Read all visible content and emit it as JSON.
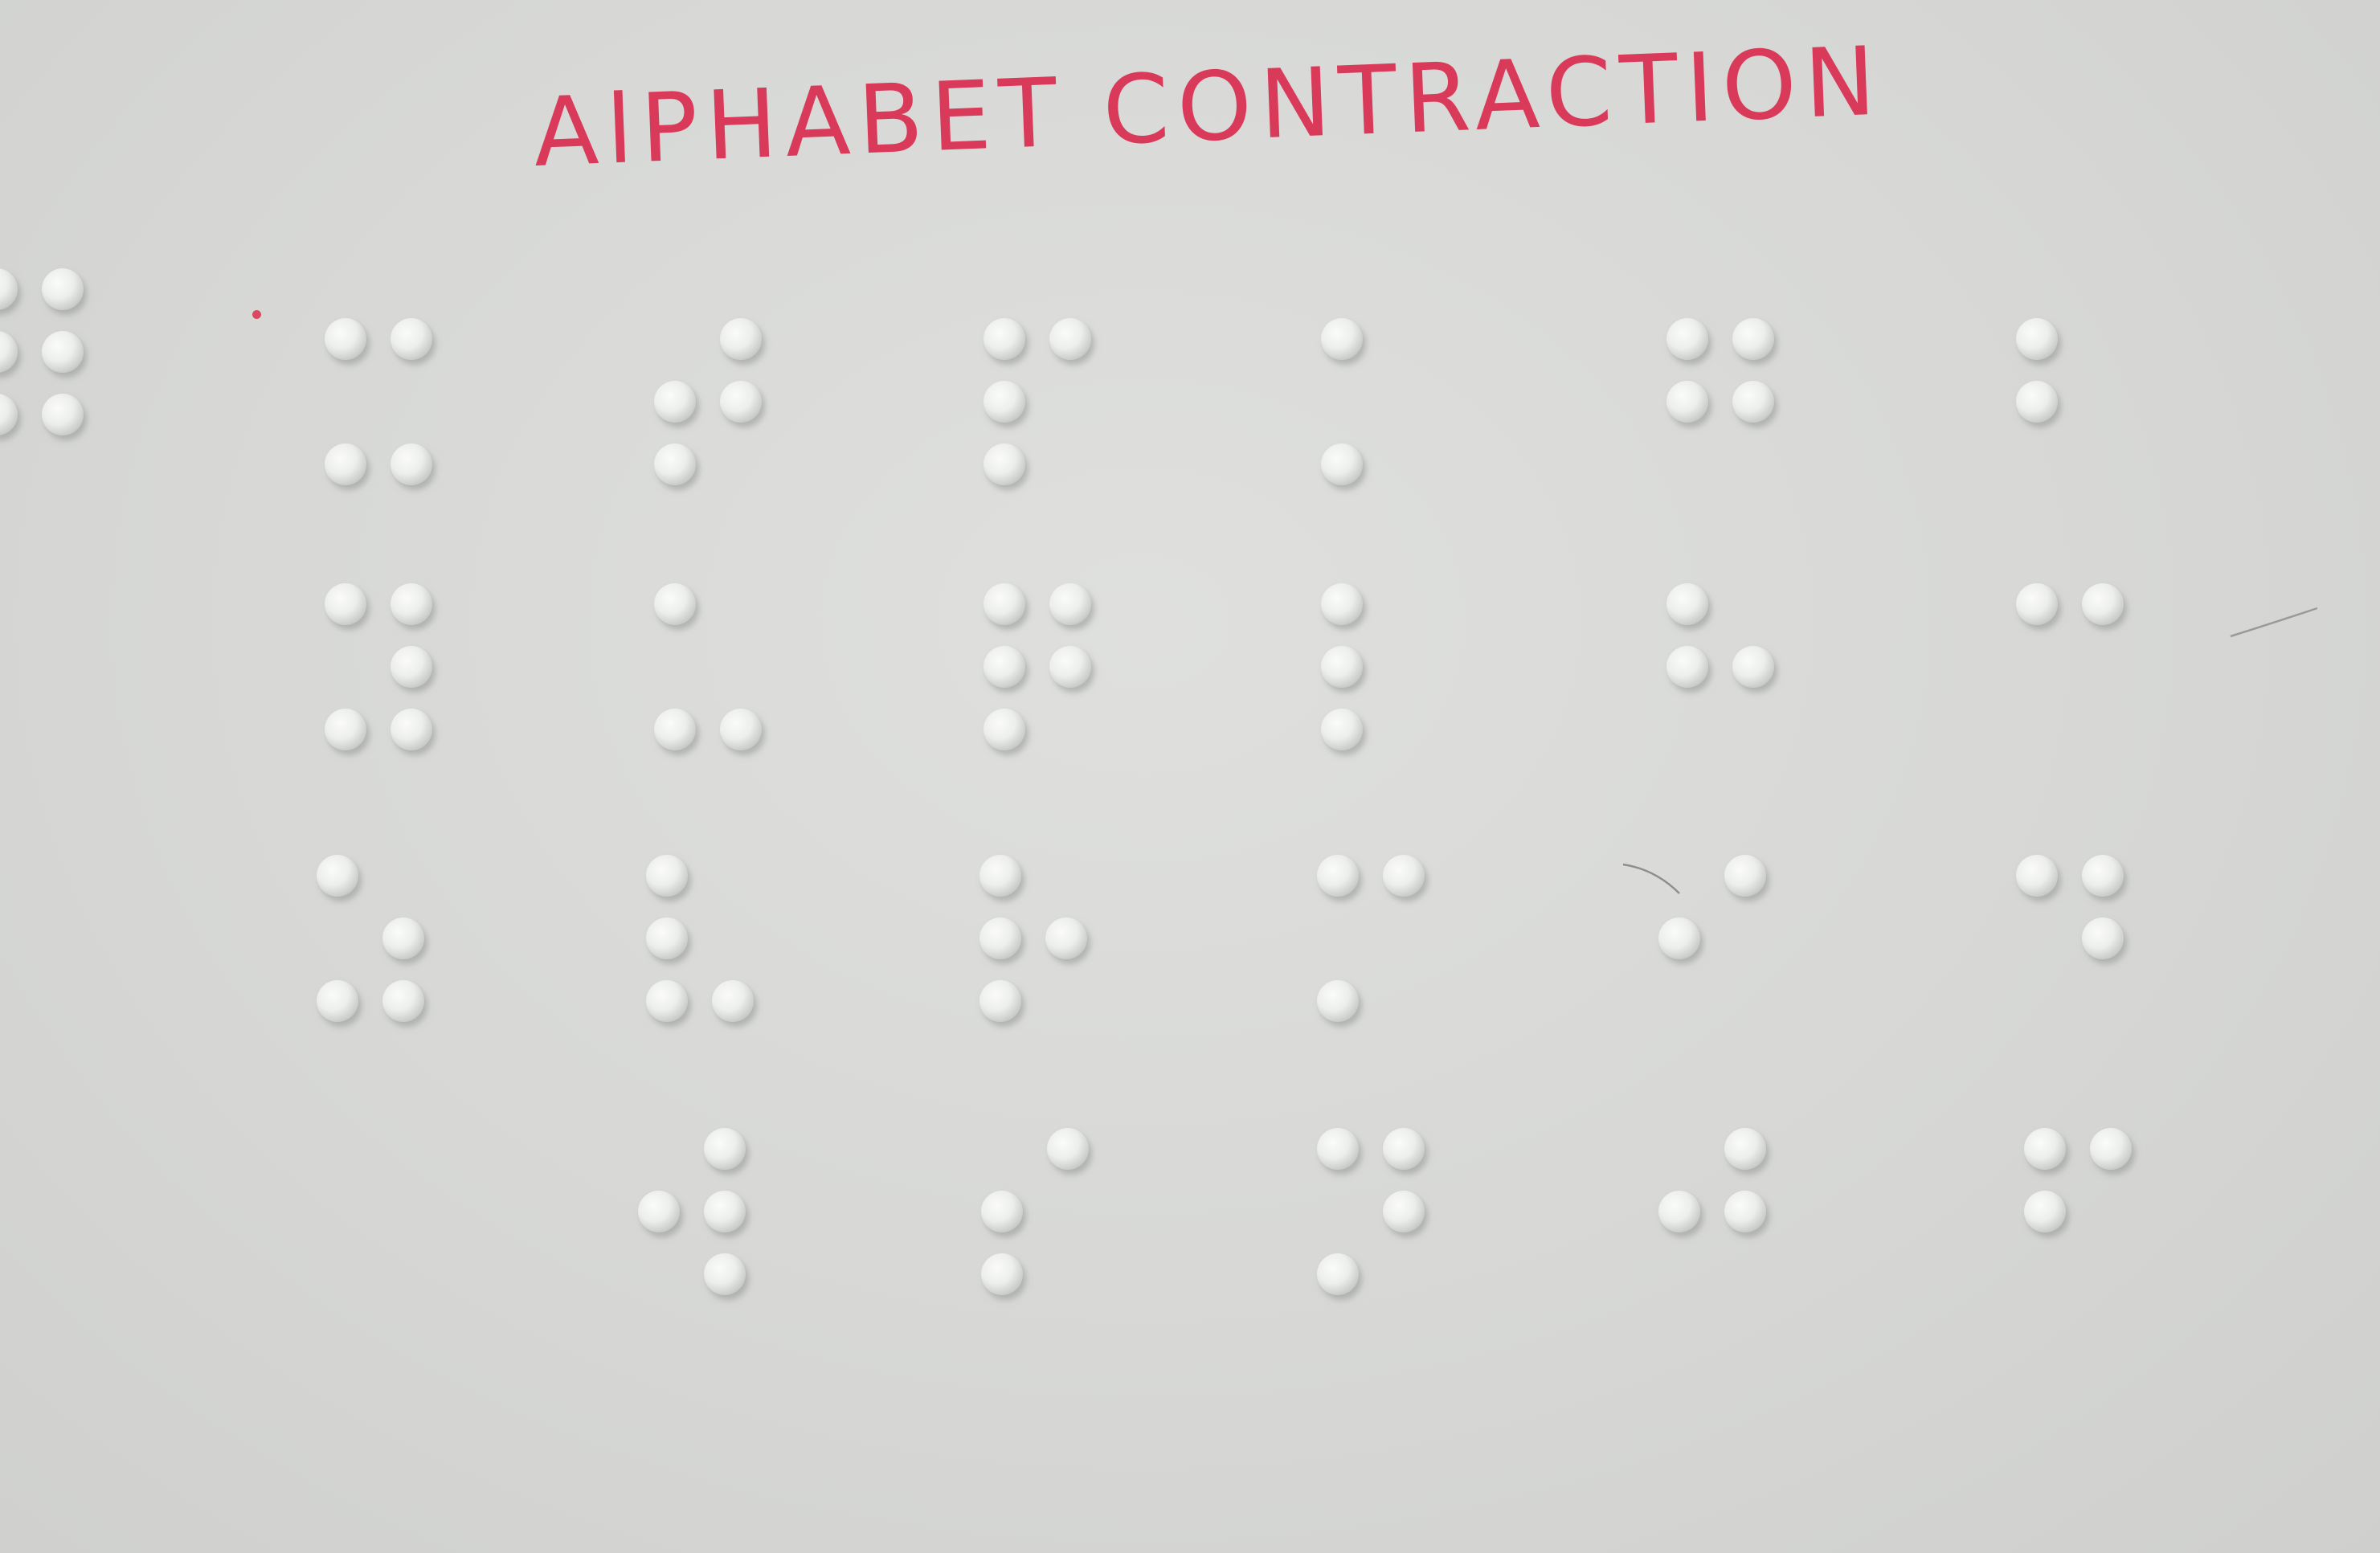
{
  "heading": {
    "text": "AlPHABET CONTRACTION",
    "ink_color": "#d93a5a"
  },
  "paper_color": "#d9dad8",
  "dot_color": "#f1f2f0",
  "braille_cells": [
    {
      "id": "edge-partial",
      "dots": [
        1,
        2,
        3,
        4,
        5,
        6
      ]
    },
    {
      "id": "r1c1",
      "dots": [
        1,
        4,
        3,
        6
      ]
    },
    {
      "id": "r1c2",
      "dots": [
        4,
        2,
        5,
        3
      ]
    },
    {
      "id": "r1c3",
      "dots": [
        1,
        4,
        2,
        3
      ]
    },
    {
      "id": "r1c4",
      "dots": [
        1,
        3
      ]
    },
    {
      "id": "r1c5",
      "dots": [
        1,
        4,
        2,
        5
      ]
    },
    {
      "id": "r1c6",
      "dots": [
        1,
        2
      ]
    },
    {
      "id": "r2c1",
      "dots": [
        1,
        4,
        5,
        3,
        6
      ]
    },
    {
      "id": "r2c2",
      "dots": [
        1,
        3,
        6
      ]
    },
    {
      "id": "r2c3",
      "dots": [
        1,
        4,
        2,
        5,
        3
      ]
    },
    {
      "id": "r2c4",
      "dots": [
        1,
        2,
        3
      ]
    },
    {
      "id": "r2c5",
      "dots": [
        1,
        2,
        5
      ]
    },
    {
      "id": "r2c6",
      "dots": [
        1,
        4
      ]
    },
    {
      "id": "r3c1",
      "dots": [
        1,
        5,
        3,
        6
      ]
    },
    {
      "id": "r3c2",
      "dots": [
        1,
        2,
        3,
        6
      ]
    },
    {
      "id": "r3c3",
      "dots": [
        1,
        2,
        5,
        3
      ]
    },
    {
      "id": "r3c4",
      "dots": [
        1,
        4,
        3
      ]
    },
    {
      "id": "r3c5",
      "dots": [
        4,
        2
      ]
    },
    {
      "id": "r3c6",
      "dots": [
        1,
        4,
        5
      ]
    },
    {
      "id": "r4c2",
      "dots": [
        4,
        2,
        5,
        6
      ]
    },
    {
      "id": "r4c3",
      "dots": [
        4,
        2,
        3
      ]
    },
    {
      "id": "r4c4",
      "dots": [
        1,
        4,
        5,
        3
      ]
    },
    {
      "id": "r4c5",
      "dots": [
        4,
        2,
        5
      ]
    },
    {
      "id": "r4c6",
      "dots": [
        1,
        4,
        2
      ]
    }
  ]
}
